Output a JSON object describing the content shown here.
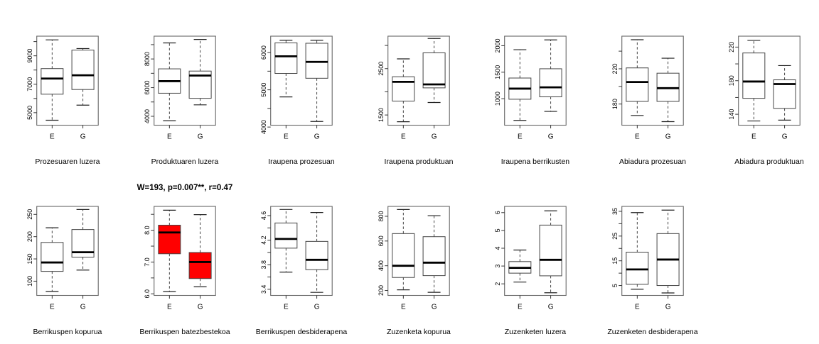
{
  "figure": {
    "background": "#ffffff",
    "grid": {
      "rows": 2,
      "cols": 7
    },
    "group_labels": [
      "E",
      "G"
    ],
    "box_fill_default": "#ffffff",
    "highlight_color": "#ff0000",
    "line_color": "#444444",
    "median_color": "#000000"
  },
  "chart_data": [
    {
      "type": "boxplot",
      "row": 0,
      "col": 0,
      "title": "Prozesuaren luzera",
      "fill": "#ffffff",
      "ylim": [
        4120,
        10380
      ],
      "yticks": [
        {
          "value": 5000,
          "label": "5000"
        },
        {
          "value": 6000,
          "label": ""
        },
        {
          "value": 7000,
          "label": "7000"
        },
        {
          "value": 8000,
          "label": ""
        },
        {
          "value": 9000,
          "label": "9000"
        },
        {
          "value": 10000,
          "label": ""
        }
      ],
      "groups": [
        {
          "label": "E",
          "whislo": 4470,
          "q1": 6300,
          "median": 7400,
          "q3": 8100,
          "whishi": 10120
        },
        {
          "label": "G",
          "whislo": 5530,
          "q1": 6630,
          "median": 7630,
          "q3": 9400,
          "whishi": 9510
        }
      ]
    },
    {
      "type": "boxplot",
      "row": 0,
      "col": 1,
      "title": "Produktuaren luzera",
      "fill": "#ffffff",
      "ylim": [
        3380,
        9590
      ],
      "yticks": [
        {
          "value": 4000,
          "label": "4000"
        },
        {
          "value": 5000,
          "label": ""
        },
        {
          "value": 6000,
          "label": "6000"
        },
        {
          "value": 7000,
          "label": ""
        },
        {
          "value": 8000,
          "label": "8000"
        },
        {
          "value": 9000,
          "label": ""
        }
      ],
      "groups": [
        {
          "label": "E",
          "whislo": 3690,
          "q1": 5610,
          "median": 6450,
          "q3": 7310,
          "whishi": 9120
        },
        {
          "label": "G",
          "whislo": 4800,
          "q1": 5255,
          "median": 6845,
          "q3": 7155,
          "whishi": 9360
        }
      ]
    },
    {
      "type": "boxplot",
      "row": 0,
      "col": 2,
      "title": "Iraupena prozesuan",
      "fill": "#ffffff",
      "ylim": [
        4050,
        6440
      ],
      "yticks": [
        {
          "value": 4000,
          "label": "4000"
        },
        {
          "value": 4500,
          "label": ""
        },
        {
          "value": 5000,
          "label": "5000"
        },
        {
          "value": 5500,
          "label": ""
        },
        {
          "value": 6000,
          "label": "6000"
        }
      ],
      "groups": [
        {
          "label": "E",
          "whislo": 4810,
          "q1": 5440,
          "median": 5900,
          "q3": 6260,
          "whishi": 6330
        },
        {
          "label": "G",
          "whislo": 4150,
          "q1": 5310,
          "median": 5750,
          "q3": 6250,
          "whishi": 6330
        }
      ]
    },
    {
      "type": "boxplot",
      "row": 0,
      "col": 3,
      "title": "Iraupena produktuan",
      "fill": "#ffffff",
      "ylim": [
        1280,
        3200
      ],
      "yticks": [
        {
          "value": 1500,
          "label": "1500"
        },
        {
          "value": 2000,
          "label": ""
        },
        {
          "value": 2500,
          "label": "2500"
        },
        {
          "value": 3000,
          "label": ""
        }
      ],
      "groups": [
        {
          "label": "E",
          "whislo": 1355,
          "q1": 1800,
          "median": 2215,
          "q3": 2325,
          "whishi": 2710
        },
        {
          "label": "G",
          "whislo": 1770,
          "q1": 2085,
          "median": 2160,
          "q3": 2840,
          "whishi": 3150
        }
      ]
    },
    {
      "type": "boxplot",
      "row": 0,
      "col": 4,
      "title": "Iraupena berrikusten",
      "fill": "#ffffff",
      "ylim": [
        500,
        2180
      ],
      "yticks": [
        {
          "value": 1000,
          "label": "1000"
        },
        {
          "value": 1500,
          "label": "1500"
        },
        {
          "value": 2000,
          "label": "2000"
        }
      ],
      "groups": [
        {
          "label": "E",
          "whislo": 590,
          "q1": 990,
          "median": 1190,
          "q3": 1390,
          "whishi": 1925
        },
        {
          "label": "G",
          "whislo": 760,
          "q1": 1035,
          "median": 1215,
          "q3": 1565,
          "whishi": 2110
        }
      ]
    },
    {
      "type": "boxplot",
      "row": 0,
      "col": 5,
      "title": "Abiadura prozesuan",
      "fill": "#ffffff",
      "ylim": [
        156,
        257
      ],
      "yticks": [
        {
          "value": 180,
          "label": "180"
        },
        {
          "value": 200,
          "label": ""
        },
        {
          "value": 220,
          "label": "220"
        },
        {
          "value": 240,
          "label": ""
        }
      ],
      "groups": [
        {
          "label": "E",
          "whislo": 167,
          "q1": 183,
          "median": 205,
          "q3": 221,
          "whishi": 253
        },
        {
          "label": "G",
          "whislo": 160,
          "q1": 183,
          "median": 198,
          "q3": 215,
          "whishi": 232
        }
      ]
    },
    {
      "type": "boxplot",
      "row": 0,
      "col": 6,
      "title": "Abiadura produktuan",
      "fill": "#ffffff",
      "ylim": [
        127,
        233
      ],
      "yticks": [
        {
          "value": 140,
          "label": "140"
        },
        {
          "value": 160,
          "label": ""
        },
        {
          "value": 180,
          "label": "180"
        },
        {
          "value": 200,
          "label": ""
        },
        {
          "value": 220,
          "label": "220"
        }
      ],
      "groups": [
        {
          "label": "E",
          "whislo": 132,
          "q1": 159,
          "median": 179,
          "q3": 213,
          "whishi": 228
        },
        {
          "label": "G",
          "whislo": 133,
          "q1": 147,
          "median": 176,
          "q3": 181,
          "whishi": 198
        }
      ]
    },
    {
      "type": "boxplot",
      "row": 1,
      "col": 0,
      "title": "Berrikuspen kopurua",
      "fill": "#ffffff",
      "ylim": [
        68,
        268
      ],
      "yticks": [
        {
          "value": 100,
          "label": "100"
        },
        {
          "value": 150,
          "label": "150"
        },
        {
          "value": 200,
          "label": "200"
        },
        {
          "value": 250,
          "label": "250"
        }
      ],
      "groups": [
        {
          "label": "E",
          "whislo": 77,
          "q1": 122,
          "median": 142,
          "q3": 187,
          "whishi": 220
        },
        {
          "label": "G",
          "whislo": 125,
          "q1": 154,
          "median": 165,
          "q3": 216,
          "whishi": 261
        }
      ]
    },
    {
      "type": "boxplot",
      "row": 1,
      "col": 1,
      "title": "Berrikuspen batezbestekoa",
      "stat_title": "W=193, p=0.007**, r=0.47",
      "fill": "#ff0000",
      "ylim": [
        5.95,
        8.75
      ],
      "yticks": [
        {
          "value": 6.0,
          "label": "6.0"
        },
        {
          "value": 6.5,
          "label": ""
        },
        {
          "value": 7.0,
          "label": "7.0"
        },
        {
          "value": 7.5,
          "label": ""
        },
        {
          "value": 8.0,
          "label": "8.0"
        },
        {
          "value": 8.5,
          "label": ""
        }
      ],
      "groups": [
        {
          "label": "E",
          "whislo": 6.07,
          "q1": 7.26,
          "median": 7.93,
          "q3": 8.16,
          "whishi": 8.63
        },
        {
          "label": "G",
          "whislo": 6.22,
          "q1": 6.48,
          "median": 7.0,
          "q3": 7.3,
          "whishi": 8.49
        }
      ]
    },
    {
      "type": "boxplot",
      "row": 1,
      "col": 2,
      "title": "Berrikuspen desbiderapena",
      "fill": "#ffffff",
      "ylim": [
        3.3,
        4.75
      ],
      "yticks": [
        {
          "value": 3.4,
          "label": "3.4"
        },
        {
          "value": 3.6,
          "label": ""
        },
        {
          "value": 3.8,
          "label": "3.8"
        },
        {
          "value": 4.0,
          "label": ""
        },
        {
          "value": 4.2,
          "label": "4.2"
        },
        {
          "value": 4.4,
          "label": ""
        },
        {
          "value": 4.6,
          "label": "4.6"
        }
      ],
      "groups": [
        {
          "label": "E",
          "whislo": 3.68,
          "q1": 4.07,
          "median": 4.22,
          "q3": 4.48,
          "whishi": 4.7
        },
        {
          "label": "G",
          "whislo": 3.35,
          "q1": 3.72,
          "median": 3.88,
          "q3": 4.18,
          "whishi": 4.65
        }
      ]
    },
    {
      "type": "boxplot",
      "row": 1,
      "col": 3,
      "title": "Zuzenketa kopurua",
      "fill": "#ffffff",
      "ylim": [
        160,
        880
      ],
      "yticks": [
        {
          "value": 200,
          "label": "200"
        },
        {
          "value": 400,
          "label": "400"
        },
        {
          "value": 600,
          "label": "600"
        },
        {
          "value": 800,
          "label": "800"
        }
      ],
      "groups": [
        {
          "label": "E",
          "whislo": 205,
          "q1": 305,
          "median": 400,
          "q3": 660,
          "whishi": 855
        },
        {
          "label": "G",
          "whislo": 185,
          "q1": 320,
          "median": 425,
          "q3": 635,
          "whishi": 805
        }
      ]
    },
    {
      "type": "boxplot",
      "row": 1,
      "col": 4,
      "title": "Zuzenketen luzera",
      "fill": "#ffffff",
      "ylim": [
        1.35,
        6.35
      ],
      "yticks": [
        {
          "value": 2,
          "label": "2"
        },
        {
          "value": 3,
          "label": "3"
        },
        {
          "value": 4,
          "label": "4"
        },
        {
          "value": 5,
          "label": "5"
        },
        {
          "value": 6,
          "label": "6"
        }
      ],
      "groups": [
        {
          "label": "E",
          "whislo": 2.1,
          "q1": 2.6,
          "median": 2.9,
          "q3": 3.25,
          "whishi": 3.9
        },
        {
          "label": "G",
          "whislo": 1.5,
          "q1": 2.45,
          "median": 3.35,
          "q3": 5.3,
          "whishi": 6.1
        }
      ]
    },
    {
      "type": "boxplot",
      "row": 1,
      "col": 5,
      "title": "Zuzenketen desbiderapena",
      "fill": "#ffffff",
      "ylim": [
        1,
        37
      ],
      "yticks": [
        {
          "value": 5,
          "label": "5"
        },
        {
          "value": 10,
          "label": ""
        },
        {
          "value": 15,
          "label": "15"
        },
        {
          "value": 20,
          "label": ""
        },
        {
          "value": 25,
          "label": "25"
        },
        {
          "value": 30,
          "label": ""
        },
        {
          "value": 35,
          "label": "35"
        }
      ],
      "groups": [
        {
          "label": "E",
          "whislo": 3.5,
          "q1": 5.5,
          "median": 11.5,
          "q3": 18.5,
          "whishi": 34.5
        },
        {
          "label": "G",
          "whislo": 2,
          "q1": 5,
          "median": 15.5,
          "q3": 26,
          "whishi": 35.5
        }
      ]
    }
  ]
}
